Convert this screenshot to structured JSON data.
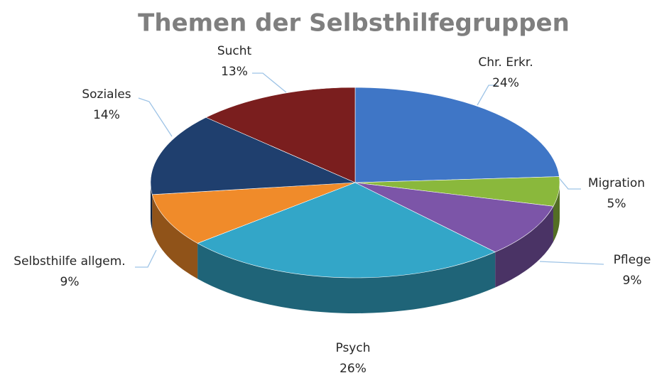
{
  "chart_data": {
    "type": "pie",
    "title": "Themen der Selbsthilfegruppen",
    "categories": [
      "Chr. Erkr.",
      "Migration",
      "Pflege",
      "Psych",
      "Selbsthilfe allgem.",
      "Soziales",
      "Sucht"
    ],
    "values": [
      24,
      5,
      9,
      26,
      9,
      14,
      13
    ],
    "value_labels": [
      "24%",
      "5%",
      "9%",
      "26%",
      "9%",
      "14%",
      "13%"
    ],
    "colors": [
      "#3f76c6",
      "#8ab83c",
      "#7c55a8",
      "#33a6c8",
      "#f08b2a",
      "#1f3f6e",
      "#7a1e1e"
    ]
  }
}
